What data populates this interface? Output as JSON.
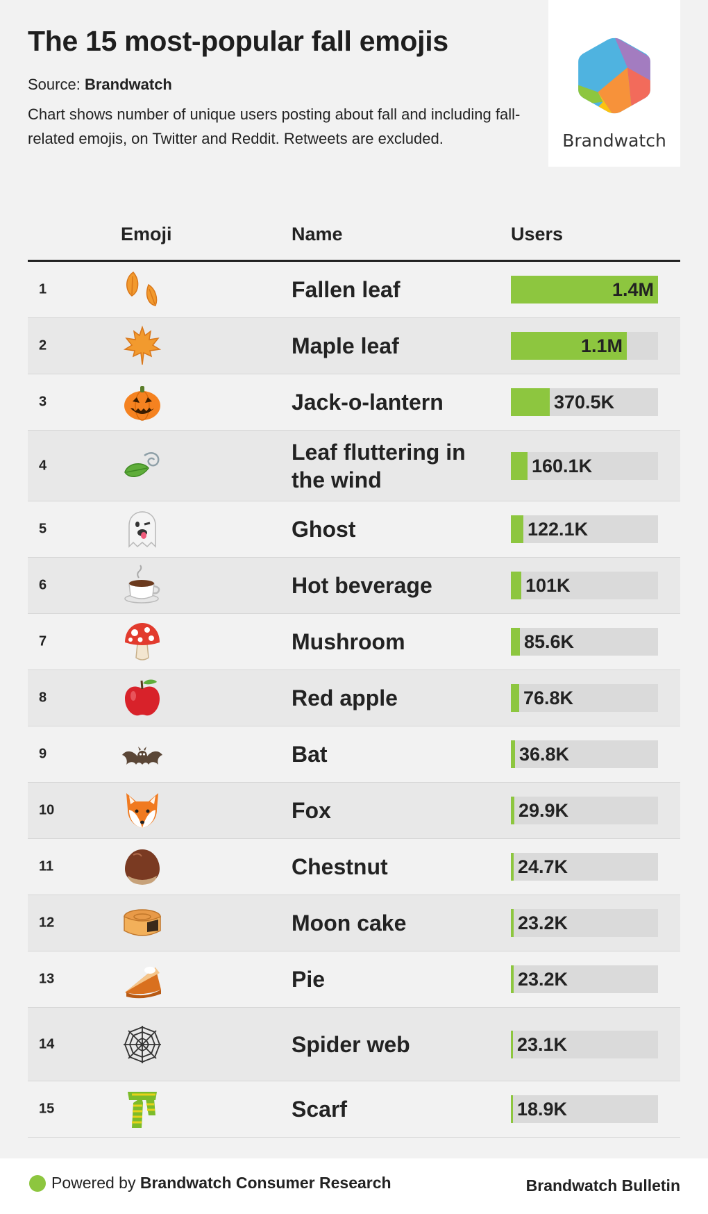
{
  "title": "The 15 most-popular fall emojis",
  "source_label": "Source:",
  "source_name": "Brandwatch",
  "description": "Chart shows number of unique users posting about fall and including fall-related emojis, on Twitter and Reddit. Retweets are excluded.",
  "logo_text": "Brandwatch",
  "columns": {
    "emoji": "Emoji",
    "name": "Name",
    "users": "Users"
  },
  "colors": {
    "bar": "#8dc63f",
    "bar_track": "#dadada",
    "row_alt": "#e8e8e8"
  },
  "footer": {
    "powered_prefix": "Powered by",
    "powered_name": "Brandwatch Consumer Research",
    "right": "Brandwatch Bulletin"
  },
  "chart_data": {
    "type": "bar",
    "orientation": "horizontal",
    "title": "The 15 most-popular fall emojis",
    "value_column": "Users",
    "rows": [
      {
        "rank": "1",
        "emoji": "fallen-leaf-icon",
        "name": "Fallen leaf",
        "value": 1400000,
        "label": "1.4M"
      },
      {
        "rank": "2",
        "emoji": "maple-leaf-icon",
        "name": "Maple leaf",
        "value": 1100000,
        "label": "1.1M"
      },
      {
        "rank": "3",
        "emoji": "jack-o-lantern-icon",
        "name": "Jack-o-lantern",
        "value": 370500,
        "label": "370.5K"
      },
      {
        "rank": "4",
        "emoji": "leaf-wind-icon",
        "name": "Leaf fluttering in the wind",
        "value": 160100,
        "label": "160.1K"
      },
      {
        "rank": "5",
        "emoji": "ghost-icon",
        "name": "Ghost",
        "value": 122100,
        "label": "122.1K"
      },
      {
        "rank": "6",
        "emoji": "hot-beverage-icon",
        "name": "Hot beverage",
        "value": 101000,
        "label": "101K"
      },
      {
        "rank": "7",
        "emoji": "mushroom-icon",
        "name": "Mushroom",
        "value": 85600,
        "label": "85.6K"
      },
      {
        "rank": "8",
        "emoji": "red-apple-icon",
        "name": "Red apple",
        "value": 76800,
        "label": "76.8K"
      },
      {
        "rank": "9",
        "emoji": "bat-icon",
        "name": "Bat",
        "value": 36800,
        "label": "36.8K"
      },
      {
        "rank": "10",
        "emoji": "fox-icon",
        "name": "Fox",
        "value": 29900,
        "label": "29.9K"
      },
      {
        "rank": "11",
        "emoji": "chestnut-icon",
        "name": "Chestnut",
        "value": 24700,
        "label": "24.7K"
      },
      {
        "rank": "12",
        "emoji": "moon-cake-icon",
        "name": "Moon cake",
        "value": 23200,
        "label": "23.2K"
      },
      {
        "rank": "13",
        "emoji": "pie-icon",
        "name": "Pie",
        "value": 23200,
        "label": "23.2K"
      },
      {
        "rank": "14",
        "emoji": "spider-web-icon",
        "name": "Spider web",
        "value": 23100,
        "label": "23.1K"
      },
      {
        "rank": "15",
        "emoji": "scarf-icon",
        "name": "Scarf",
        "value": 18900,
        "label": "18.9K"
      }
    ]
  }
}
